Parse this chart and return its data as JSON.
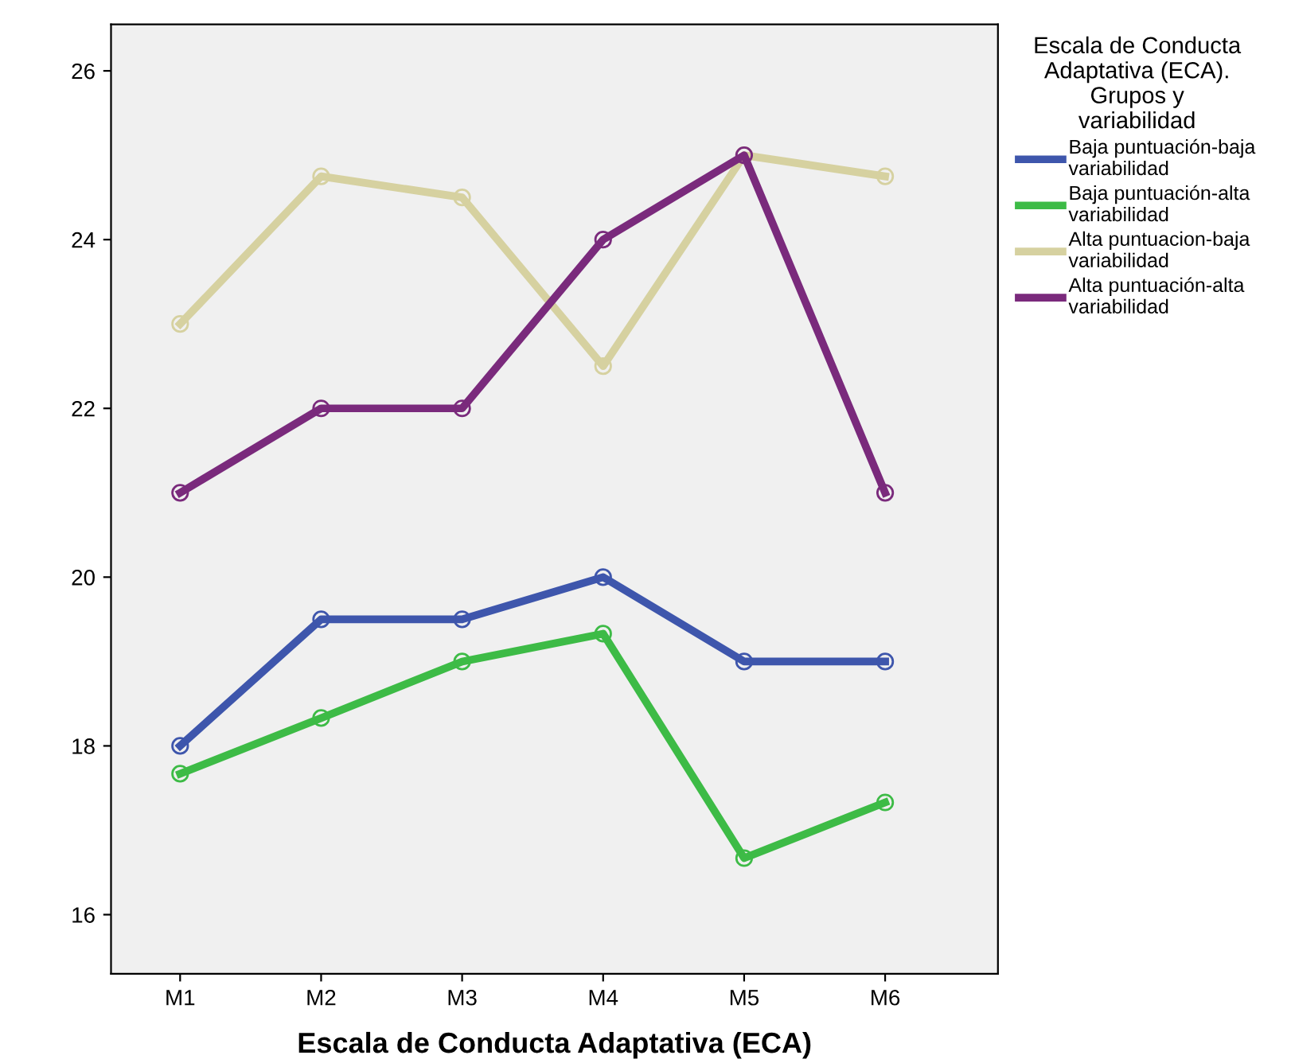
{
  "chart_data": {
    "type": "line",
    "xlabel": "Escala de Conducta Adaptativa (ECA)",
    "legend_title": "Escala de Conducta\nAdaptativa (ECA).\nGrupos y\nvariabilidad",
    "categories": [
      "M1",
      "M2",
      "M3",
      "M4",
      "M5",
      "M6"
    ],
    "series": [
      {
        "name": "Baja puntuación-baja\nvariabilidad",
        "color": "#3e56ac",
        "values": [
          18,
          19.5,
          19.5,
          20,
          19,
          19
        ]
      },
      {
        "name": "Baja puntuación-alta\nvariabilidad",
        "color": "#3dbb46",
        "values": [
          17.67,
          18.33,
          19,
          19.33,
          16.67,
          17.33
        ]
      },
      {
        "name": "Alta puntuacion-baja\nvariabilidad",
        "color": "#d6d1a0",
        "values": [
          23,
          24.75,
          24.5,
          22.5,
          25,
          24.75
        ]
      },
      {
        "name": "Alta puntuación-alta\nvariabilidad",
        "color": "#7a2a7c",
        "values": [
          21,
          22,
          22,
          24,
          25,
          21
        ]
      }
    ],
    "ylim": [
      15.3,
      26.55
    ],
    "yticks": [
      16,
      18,
      20,
      22,
      24,
      26
    ],
    "grid": false,
    "legend": "right",
    "marker": "circle",
    "line_style": "solid"
  }
}
